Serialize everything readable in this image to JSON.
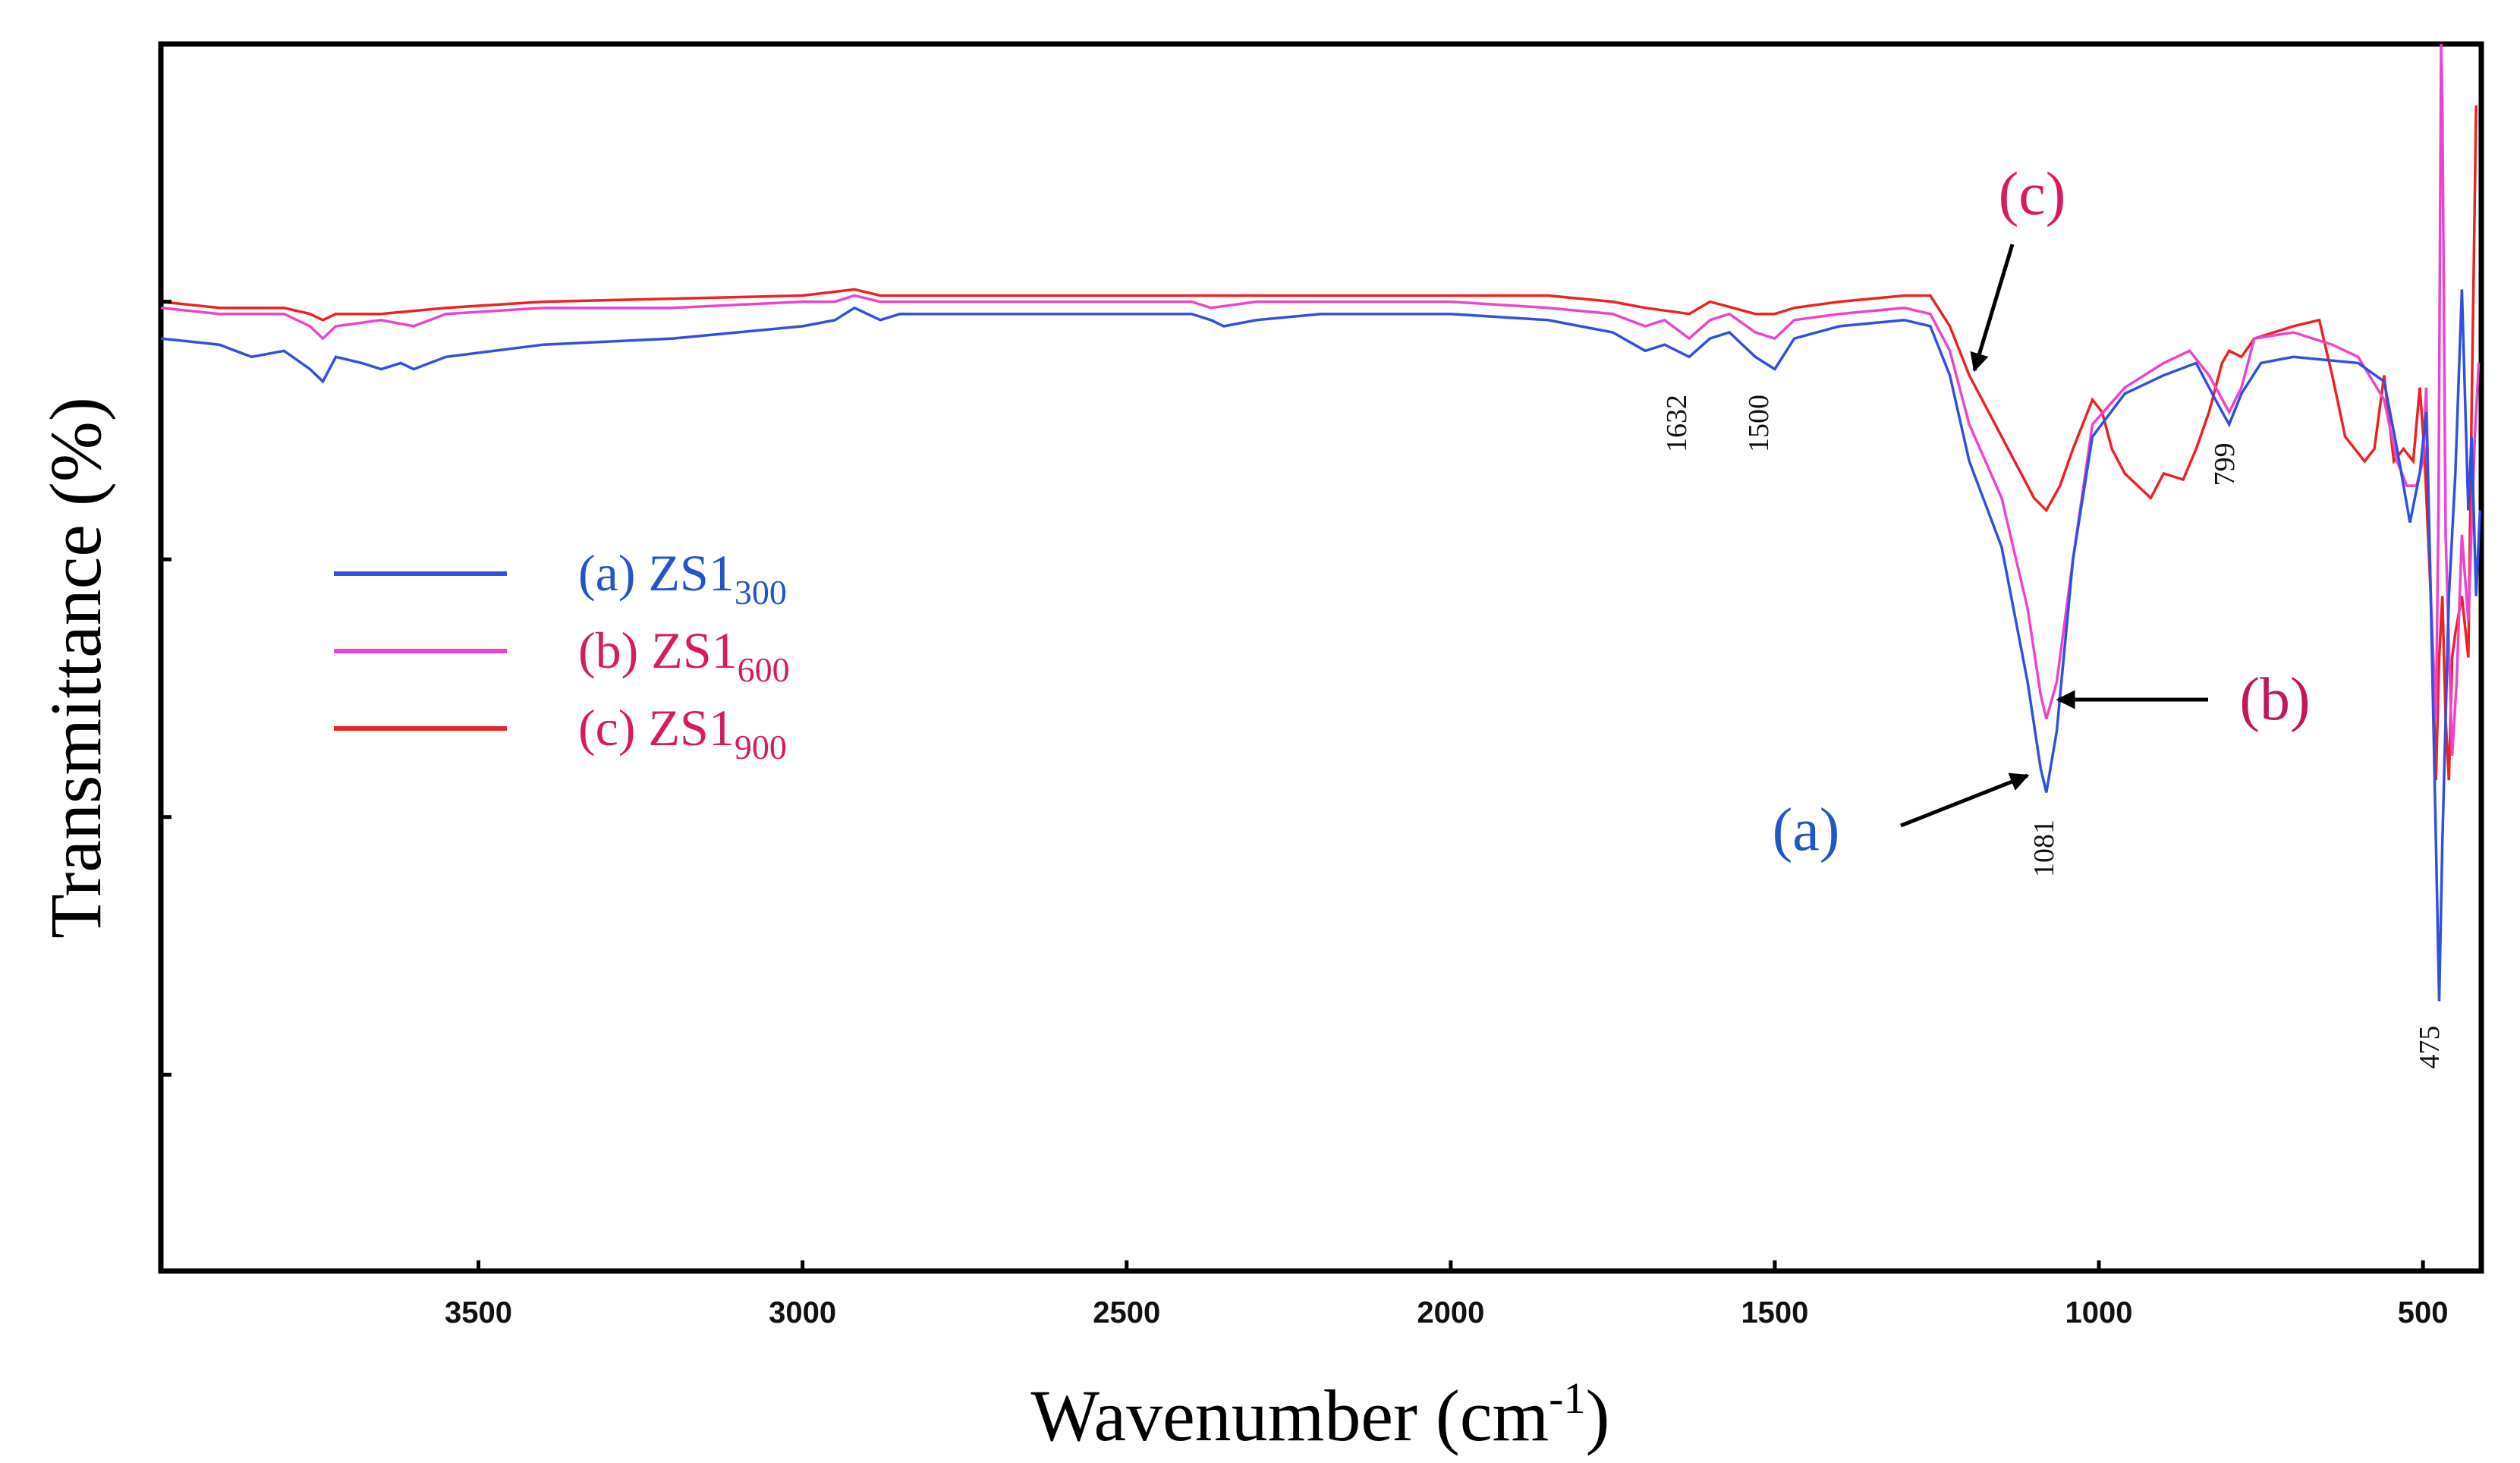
{
  "chart_data": {
    "type": "line",
    "title": "",
    "xlabel": "Wavenumber (cm",
    "xlabel_sup": "-1",
    "xlabel_close": ")",
    "ylabel": "Transmittance (%)",
    "xlim": [
      3990,
      410
    ],
    "ylim": [
      0,
      100
    ],
    "x_ticks": [
      3500,
      3000,
      2500,
      2000,
      1500,
      1000,
      500
    ],
    "y_ticks": [
      16,
      37,
      58,
      79,
      100
    ],
    "grid": false,
    "legend_position": "left-center",
    "series": [
      {
        "id": "a",
        "name": "(a) ZS1",
        "subscript": "300",
        "line_color": "#3050e0",
        "text_color": "#2255cc",
        "points": [
          [
            3990,
            76
          ],
          [
            3900,
            75.5
          ],
          [
            3850,
            74.5
          ],
          [
            3800,
            75
          ],
          [
            3760,
            73.5
          ],
          [
            3740,
            72.5
          ],
          [
            3720,
            74.5
          ],
          [
            3680,
            74
          ],
          [
            3650,
            73.5
          ],
          [
            3620,
            74
          ],
          [
            3600,
            73.5
          ],
          [
            3550,
            74.5
          ],
          [
            3400,
            75.5
          ],
          [
            3200,
            76
          ],
          [
            3000,
            77
          ],
          [
            2950,
            77.5
          ],
          [
            2920,
            78.5
          ],
          [
            2880,
            77.5
          ],
          [
            2850,
            78
          ],
          [
            2700,
            78
          ],
          [
            2400,
            78
          ],
          [
            2370,
            77.5
          ],
          [
            2350,
            77
          ],
          [
            2300,
            77.5
          ],
          [
            2200,
            78
          ],
          [
            2000,
            78
          ],
          [
            1850,
            77.5
          ],
          [
            1750,
            76.5
          ],
          [
            1700,
            75
          ],
          [
            1670,
            75.5
          ],
          [
            1632,
            74.5
          ],
          [
            1600,
            76
          ],
          [
            1570,
            76.5
          ],
          [
            1530,
            74.5
          ],
          [
            1500,
            73.5
          ],
          [
            1470,
            76
          ],
          [
            1400,
            77
          ],
          [
            1300,
            77.5
          ],
          [
            1260,
            77
          ],
          [
            1230,
            73
          ],
          [
            1200,
            66
          ],
          [
            1150,
            59
          ],
          [
            1110,
            48
          ],
          [
            1090,
            41
          ],
          [
            1081,
            39
          ],
          [
            1065,
            44
          ],
          [
            1040,
            58
          ],
          [
            1010,
            68
          ],
          [
            960,
            71.5
          ],
          [
            900,
            73
          ],
          [
            850,
            74
          ],
          [
            820,
            71
          ],
          [
            799,
            69
          ],
          [
            780,
            71.5
          ],
          [
            750,
            74
          ],
          [
            700,
            74.5
          ],
          [
            600,
            74
          ],
          [
            560,
            72.5
          ],
          [
            540,
            67
          ],
          [
            520,
            61
          ],
          [
            505,
            65
          ],
          [
            495,
            70
          ],
          [
            488,
            55
          ],
          [
            480,
            35
          ],
          [
            475,
            22
          ],
          [
            470,
            35
          ],
          [
            465,
            45
          ],
          [
            460,
            55
          ],
          [
            450,
            65
          ],
          [
            440,
            80
          ],
          [
            430,
            62
          ],
          [
            425,
            68
          ],
          [
            418,
            55
          ],
          [
            412,
            62
          ]
        ]
      },
      {
        "id": "b",
        "name": "(b) ZS1",
        "subscript": "600",
        "line_color": "#ee44cc",
        "text_color": "#d81b60",
        "points": [
          [
            3990,
            78.5
          ],
          [
            3900,
            78
          ],
          [
            3800,
            78
          ],
          [
            3760,
            77
          ],
          [
            3740,
            76
          ],
          [
            3720,
            77
          ],
          [
            3650,
            77.5
          ],
          [
            3600,
            77
          ],
          [
            3550,
            78
          ],
          [
            3400,
            78.5
          ],
          [
            3200,
            78.5
          ],
          [
            3000,
            79
          ],
          [
            2950,
            79
          ],
          [
            2920,
            79.5
          ],
          [
            2880,
            79
          ],
          [
            2700,
            79
          ],
          [
            2400,
            79
          ],
          [
            2370,
            78.5
          ],
          [
            2300,
            79
          ],
          [
            2200,
            79
          ],
          [
            2000,
            79
          ],
          [
            1850,
            78.5
          ],
          [
            1750,
            78
          ],
          [
            1700,
            77
          ],
          [
            1670,
            77.5
          ],
          [
            1632,
            76
          ],
          [
            1600,
            77.5
          ],
          [
            1570,
            78
          ],
          [
            1530,
            76.5
          ],
          [
            1500,
            76
          ],
          [
            1470,
            77.5
          ],
          [
            1400,
            78
          ],
          [
            1300,
            78.5
          ],
          [
            1260,
            78
          ],
          [
            1230,
            75
          ],
          [
            1200,
            69
          ],
          [
            1150,
            63
          ],
          [
            1110,
            54
          ],
          [
            1090,
            47
          ],
          [
            1081,
            45
          ],
          [
            1065,
            48
          ],
          [
            1040,
            58
          ],
          [
            1010,
            69
          ],
          [
            960,
            72
          ],
          [
            900,
            74
          ],
          [
            860,
            75
          ],
          [
            830,
            73
          ],
          [
            799,
            70
          ],
          [
            780,
            72
          ],
          [
            760,
            76
          ],
          [
            700,
            76.5
          ],
          [
            640,
            75.5
          ],
          [
            600,
            74.5
          ],
          [
            560,
            71
          ],
          [
            540,
            66
          ],
          [
            525,
            64
          ],
          [
            510,
            64
          ],
          [
            500,
            66
          ],
          [
            495,
            72
          ],
          [
            488,
            55
          ],
          [
            480,
            45
          ],
          [
            476,
            62
          ],
          [
            472,
            100
          ],
          [
            470,
            95
          ],
          [
            465,
            60
          ],
          [
            455,
            42
          ],
          [
            448,
            48
          ],
          [
            440,
            60
          ],
          [
            430,
            53
          ],
          [
            420,
            68
          ],
          [
            414,
            74
          ]
        ]
      },
      {
        "id": "c",
        "name": "(c) ZS1",
        "subscript": "900",
        "line_color": "#ee2222",
        "text_color": "#d81b60",
        "points": [
          [
            3990,
            79
          ],
          [
            3900,
            78.5
          ],
          [
            3800,
            78.5
          ],
          [
            3760,
            78
          ],
          [
            3740,
            77.5
          ],
          [
            3720,
            78
          ],
          [
            3650,
            78
          ],
          [
            3550,
            78.5
          ],
          [
            3400,
            79
          ],
          [
            3000,
            79.5
          ],
          [
            2920,
            80
          ],
          [
            2880,
            79.5
          ],
          [
            2700,
            79.5
          ],
          [
            2400,
            79.5
          ],
          [
            2300,
            79.5
          ],
          [
            2000,
            79.5
          ],
          [
            1850,
            79.5
          ],
          [
            1750,
            79
          ],
          [
            1700,
            78.5
          ],
          [
            1632,
            78
          ],
          [
            1600,
            79
          ],
          [
            1530,
            78
          ],
          [
            1500,
            78
          ],
          [
            1470,
            78.5
          ],
          [
            1400,
            79
          ],
          [
            1300,
            79.5
          ],
          [
            1260,
            79.5
          ],
          [
            1230,
            77
          ],
          [
            1200,
            73
          ],
          [
            1180,
            71
          ],
          [
            1150,
            68
          ],
          [
            1100,
            63
          ],
          [
            1081,
            62
          ],
          [
            1060,
            64
          ],
          [
            1040,
            67
          ],
          [
            1010,
            71
          ],
          [
            995,
            70
          ],
          [
            980,
            67
          ],
          [
            960,
            65
          ],
          [
            920,
            63
          ],
          [
            900,
            65
          ],
          [
            870,
            64.5
          ],
          [
            850,
            67
          ],
          [
            830,
            70
          ],
          [
            810,
            74
          ],
          [
            799,
            75
          ],
          [
            780,
            74.5
          ],
          [
            760,
            76
          ],
          [
            700,
            77
          ],
          [
            660,
            77.5
          ],
          [
            640,
            73
          ],
          [
            620,
            68
          ],
          [
            590,
            66
          ],
          [
            575,
            67
          ],
          [
            560,
            73
          ],
          [
            545,
            66
          ],
          [
            530,
            67
          ],
          [
            515,
            66
          ],
          [
            505,
            72
          ],
          [
            498,
            67
          ],
          [
            488,
            55
          ],
          [
            480,
            40
          ],
          [
            475,
            50
          ],
          [
            470,
            55
          ],
          [
            465,
            45
          ],
          [
            460,
            40
          ],
          [
            455,
            50
          ],
          [
            450,
            52
          ],
          [
            440,
            55
          ],
          [
            430,
            50
          ],
          [
            425,
            70
          ],
          [
            418,
            95
          ]
        ]
      }
    ],
    "peak_labels": [
      {
        "text": "1632",
        "x": 1632
      },
      {
        "text": "1500",
        "x": 1500
      },
      {
        "text": "1081",
        "x": 1081
      },
      {
        "text": "799",
        "x": 799
      },
      {
        "text": "475",
        "x": 475
      }
    ],
    "callouts": [
      {
        "text": "(a)",
        "color": "#2255cc"
      },
      {
        "text": "(b)",
        "color": "#c2185b"
      },
      {
        "text": "(c)",
        "color": "#d81b60"
      }
    ]
  }
}
